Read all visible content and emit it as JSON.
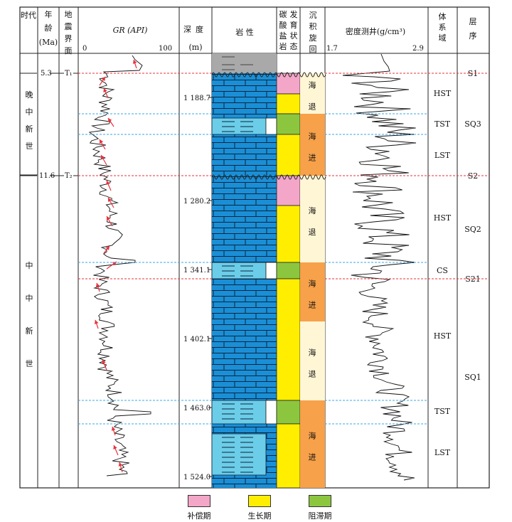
{
  "headers": {
    "era": "时代",
    "age_top": "年",
    "age_mid": "龄",
    "age_unit": "(Ma)",
    "seismic": "地震界面",
    "gr_title": "GR (API)",
    "gr_min": "0",
    "gr_max": "100",
    "depth": "深度",
    "depth_unit": "(m)",
    "lithology": "岩  性",
    "carbonate": "碳酸盐岩发育状态",
    "cycle": "沉积旋回",
    "density_title": "密度测井(g/cm³)",
    "density_min": "1.7",
    "density_max": "2.9",
    "system_tract": "体系域",
    "sequence": "层序"
  },
  "eras": [
    {
      "chars": [
        "晚",
        "中",
        "新",
        "世"
      ]
    },
    {
      "chars": [
        "中",
        "中",
        "新",
        "世"
      ]
    }
  ],
  "ages": [
    "5.3",
    "11.6"
  ],
  "seismic_surfaces": [
    "T₁",
    "T₂"
  ],
  "depths": [
    "1 188.7",
    "1 280.2",
    "1 341.1",
    "1 402.1",
    "1 463.0",
    "1 524.0"
  ],
  "cycles": [
    {
      "chars": [
        "海",
        "退"
      ],
      "kind": "regression"
    },
    {
      "chars": [
        "海",
        "进"
      ],
      "kind": "transgression"
    },
    {
      "chars": [
        "海",
        "退"
      ],
      "kind": "regression"
    },
    {
      "chars": [
        "海",
        "进"
      ],
      "kind": "transgression"
    },
    {
      "chars": [
        "海",
        "退"
      ],
      "kind": "regression"
    },
    {
      "chars": [
        "海",
        "进"
      ],
      "kind": "transgression"
    }
  ],
  "system_tracts": [
    "HST",
    "TST",
    "LST",
    "HST",
    "CS",
    "HST",
    "TST",
    "LST"
  ],
  "boundaries": [
    "S1",
    "S2",
    "S21"
  ],
  "sequences": [
    "SQ3",
    "SQ2",
    "SQ1"
  ],
  "carbonate_states": [
    {
      "name": "compensation",
      "label": "补偿期",
      "color": "#f4a6c8"
    },
    {
      "name": "growth",
      "label": "生长期",
      "color": "#ffee00"
    },
    {
      "name": "drowning",
      "label": "阻滞期",
      "color": "#8cc63f"
    }
  ],
  "colors": {
    "limestone": "#1b8fd6",
    "marl": "#6ccde8",
    "regression": "#fff6d5",
    "transgression": "#f7a14a",
    "sequence_boundary": "#e8323c",
    "systems_boundary": "#3aa8e8",
    "arrow": "#e8323c",
    "cap_rock": "#a9a9a9"
  },
  "legend": [
    "补偿期",
    "生长期",
    "阻滞期"
  ]
}
